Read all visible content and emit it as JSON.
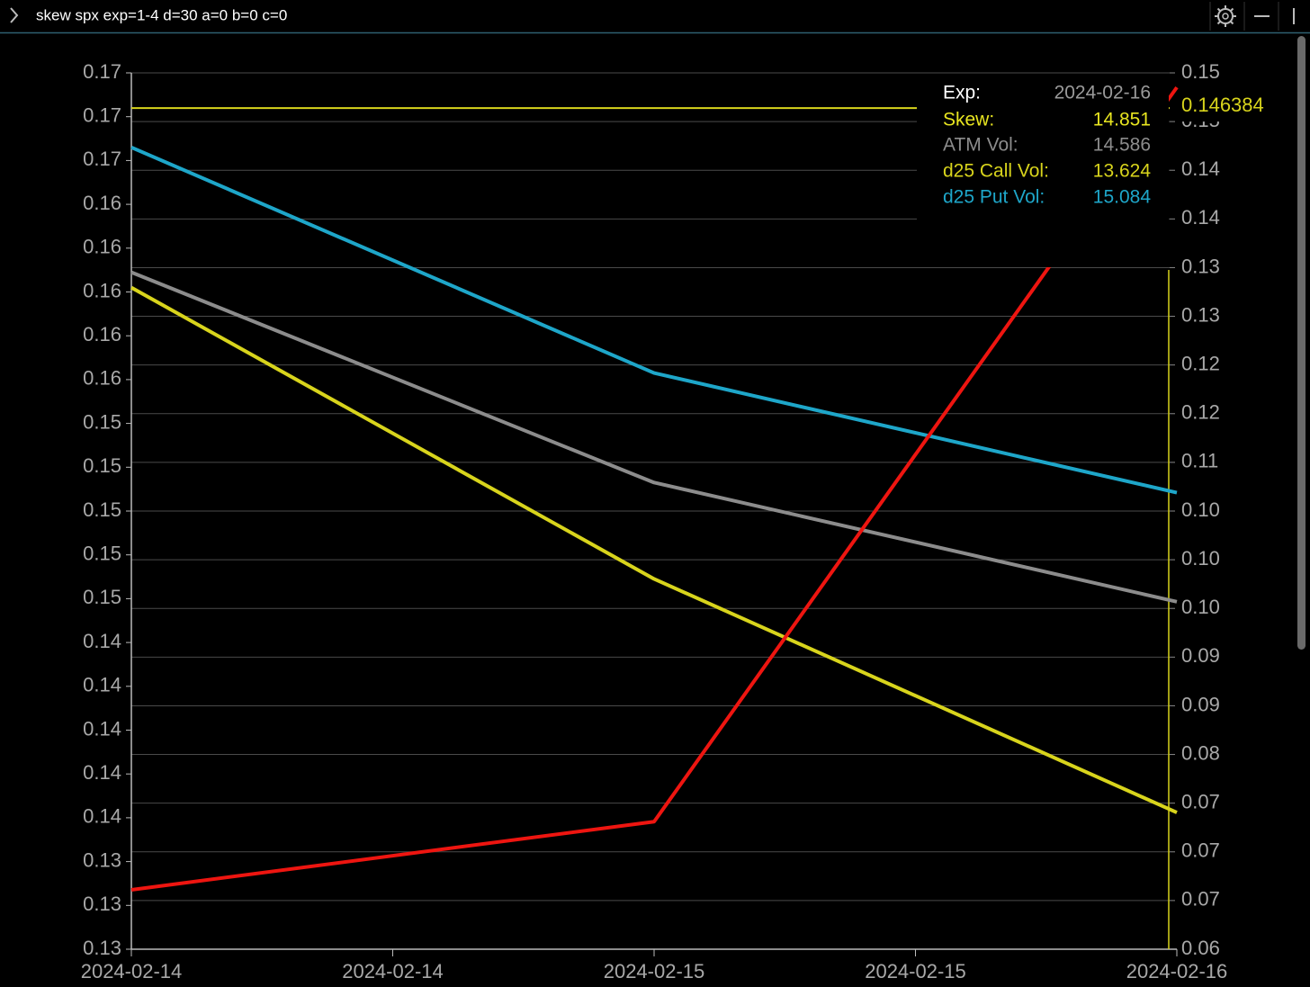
{
  "command": "skew spx exp=1-4 d=30 a=0 b=0 c=0",
  "chart_data": {
    "type": "line",
    "x": [
      "2024-02-14",
      "2024-02-15",
      "2024-02-16"
    ],
    "xticks": [
      "2024-02-14",
      "2024-02-14",
      "2024-02-15",
      "2024-02-15",
      "2024-02-16"
    ],
    "ylim": [
      0.13,
      0.17
    ],
    "yticks": [
      {
        "value": 0.13,
        "label": "0.13"
      },
      {
        "value": 0.132,
        "label": "0.13"
      },
      {
        "value": 0.134,
        "label": "0.13"
      },
      {
        "value": 0.136,
        "label": "0.14"
      },
      {
        "value": 0.138,
        "label": "0.14"
      },
      {
        "value": 0.14,
        "label": "0.14"
      },
      {
        "value": 0.142,
        "label": "0.14"
      },
      {
        "value": 0.144,
        "label": "0.14"
      },
      {
        "value": 0.146,
        "label": "0.15"
      },
      {
        "value": 0.148,
        "label": "0.15"
      },
      {
        "value": 0.15,
        "label": "0.15"
      },
      {
        "value": 0.152,
        "label": "0.15"
      },
      {
        "value": 0.154,
        "label": "0.15"
      },
      {
        "value": 0.156,
        "label": "0.16"
      },
      {
        "value": 0.158,
        "label": "0.16"
      },
      {
        "value": 0.16,
        "label": "0.16"
      },
      {
        "value": 0.162,
        "label": "0.16"
      },
      {
        "value": 0.164,
        "label": "0.16"
      },
      {
        "value": 0.166,
        "label": "0.17"
      },
      {
        "value": 0.168,
        "label": "0.17"
      },
      {
        "value": 0.17,
        "label": "0.17"
      }
    ],
    "y2lim": [
      0.06,
      0.15
    ],
    "y2ticks": [
      0.06,
      {
        "value": 0.065,
        "label": "0.07"
      },
      {
        "value": 0.07,
        "label": "0.07"
      },
      {
        "value": 0.075,
        "label": "0.07"
      },
      {
        "value": 0.08,
        "label": "0.08"
      },
      {
        "value": 0.085,
        "label": "0.09"
      },
      {
        "value": 0.09,
        "label": "0.09"
      },
      {
        "value": 0.095,
        "label": "0.10"
      },
      {
        "value": 0.1,
        "label": "0.10"
      },
      {
        "value": 0.105,
        "label": "0.10"
      },
      0.11,
      {
        "value": 0.115,
        "label": "0.12"
      },
      0.12,
      {
        "value": 0.125,
        "label": "0.13"
      },
      0.13,
      {
        "value": 0.135,
        "label": "0.14"
      },
      0.14,
      {
        "value": 0.145,
        "label": "0.15"
      },
      0.15
    ],
    "y2_axis_color": "#d8d41c",
    "grid": true,
    "series": [
      {
        "color": "#1ea6c9",
        "values": [
          0.1666,
          0.1563,
          0.15084
        ]
      },
      {
        "color": "#8c8c8c",
        "values": [
          0.1609,
          0.1513,
          0.14586
        ]
      },
      {
        "color": "#d8d41c",
        "values": [
          0.1602,
          0.1469,
          0.13624
        ]
      },
      {
        "color": "#ee1510",
        "axis": "y2",
        "values": [
          0.0661,
          0.0731,
          0.14851
        ]
      }
    ],
    "hline": {
      "value": 0.146384,
      "axis": "y2",
      "color": "#d8d41c"
    },
    "tooltip": {
      "title": {
        "label": "Exp:",
        "value": "2024-02-16"
      },
      "rows": [
        {
          "label": "Skew:",
          "value": 14.851,
          "color": "#e8e520"
        },
        {
          "label": "ATM Vol:",
          "value": 14.586,
          "color": "#8c8c8c"
        },
        {
          "label": "d25 Call Vol:",
          "value": 13.624,
          "color": "#d8d41c"
        },
        {
          "label": "d25 Put Vol:",
          "value": 15.084,
          "color": "#1ea6c9"
        }
      ]
    }
  }
}
